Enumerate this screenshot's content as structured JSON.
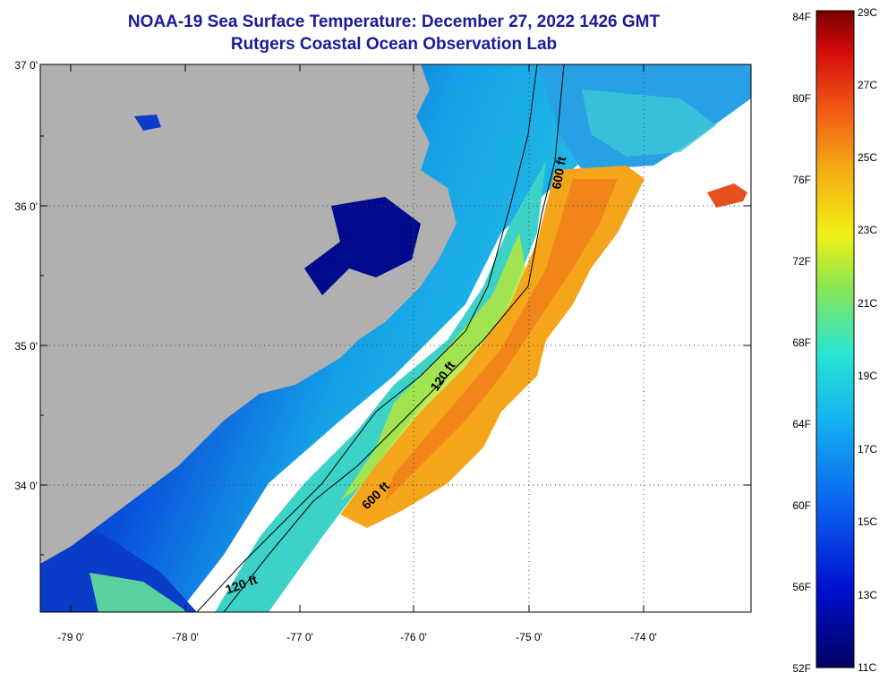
{
  "title": "NOAA-19 Sea Surface Temperature:  December 27, 2022 1426 GMT",
  "subtitle": "Rutgers Coastal Ocean Observation Lab",
  "lat_labels": [
    "37 0'",
    "36 0'",
    "35 0'",
    "34 0'"
  ],
  "lon_labels": [
    "-79 0'",
    "-78 0'",
    "-77 0'",
    "-76 0'",
    "-75 0'",
    "-74 0'"
  ],
  "contour_labels": [
    "600 ft",
    "120 ft",
    "600 ft",
    "120 ft"
  ],
  "colorbar": {
    "fahrenheit": [
      "84F",
      "80F",
      "76F",
      "72F",
      "68F",
      "64F",
      "60F",
      "56F",
      "52F"
    ],
    "celsius": [
      "29C",
      "27C",
      "25C",
      "23C",
      "21C",
      "19C",
      "17C",
      "15C",
      "13C",
      "11C"
    ]
  },
  "colors": {
    "title": "#1a1a9c",
    "land": "#b0b0b0",
    "cloud": "#ffffff",
    "cold": "#000a8c",
    "cool": "#0a64e6",
    "mid": "#28d2e6",
    "mild": "#c8e61e",
    "warm": "#f5a519",
    "hot": "#e6501e"
  }
}
